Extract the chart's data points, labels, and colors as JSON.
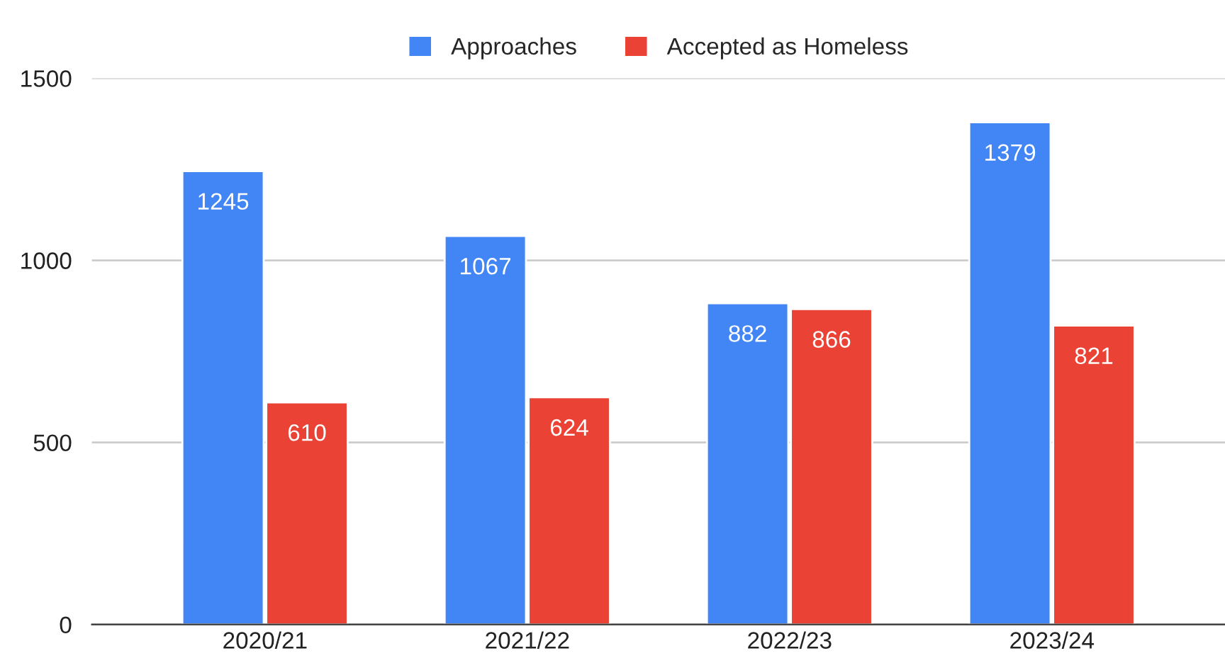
{
  "chart_data": {
    "type": "bar",
    "categories": [
      "2020/21",
      "2021/22",
      "2022/23",
      "2023/24"
    ],
    "series": [
      {
        "name": "Approaches",
        "color": "#4285f4",
        "values": [
          1245,
          1067,
          882,
          1379
        ]
      },
      {
        "name": "Accepted as Homeless",
        "color": "#ea4335",
        "values": [
          610,
          624,
          866,
          821
        ]
      }
    ],
    "ylim": [
      0,
      1500
    ],
    "yticks": [
      0,
      500,
      1000,
      1500
    ],
    "grid": "y",
    "legend": "top",
    "data_labels": true
  }
}
